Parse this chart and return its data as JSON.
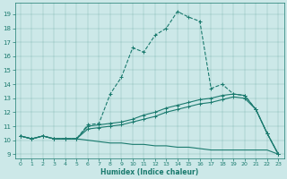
{
  "xlabel": "Humidex (Indice chaleur)",
  "bg_color": "#cce8e8",
  "line_color": "#1a7a6e",
  "xlim": [
    -0.5,
    23.5
  ],
  "ylim": [
    8.7,
    19.8
  ],
  "xticks": [
    0,
    1,
    2,
    3,
    4,
    5,
    6,
    7,
    8,
    9,
    10,
    11,
    12,
    13,
    14,
    15,
    16,
    17,
    18,
    19,
    20,
    21,
    22,
    23
  ],
  "yticks": [
    9,
    10,
    11,
    12,
    13,
    14,
    15,
    16,
    17,
    18,
    19
  ],
  "line1_x": [
    0,
    1,
    2,
    3,
    4,
    5,
    6,
    7,
    8,
    9,
    10,
    11,
    12,
    13,
    14,
    15,
    16,
    17,
    18,
    19,
    20,
    21,
    22,
    23
  ],
  "line1_y": [
    10.3,
    10.1,
    10.3,
    10.1,
    10.1,
    10.1,
    11.1,
    11.2,
    13.3,
    14.5,
    16.6,
    16.3,
    17.5,
    18.0,
    19.2,
    18.8,
    18.5,
    13.7,
    14.0,
    13.3,
    13.2,
    12.2,
    10.5,
    9.0
  ],
  "line2_x": [
    0,
    1,
    2,
    3,
    4,
    5,
    6,
    7,
    8,
    9,
    10,
    11,
    12,
    13,
    14,
    15,
    16,
    17,
    18,
    19,
    20,
    21,
    22,
    23
  ],
  "line2_y": [
    10.3,
    10.1,
    10.3,
    10.1,
    10.1,
    10.1,
    11.0,
    11.1,
    11.2,
    11.3,
    11.5,
    11.8,
    12.0,
    12.3,
    12.5,
    12.7,
    12.9,
    13.0,
    13.2,
    13.3,
    13.2,
    12.2,
    10.5,
    9.0
  ],
  "line3_x": [
    0,
    1,
    2,
    3,
    4,
    5,
    6,
    7,
    8,
    9,
    10,
    11,
    12,
    13,
    14,
    15,
    16,
    17,
    18,
    19,
    20,
    21,
    22,
    23
  ],
  "line3_y": [
    10.3,
    10.1,
    10.3,
    10.1,
    10.1,
    10.1,
    10.8,
    10.9,
    11.0,
    11.1,
    11.3,
    11.5,
    11.7,
    12.0,
    12.2,
    12.4,
    12.6,
    12.7,
    12.9,
    13.1,
    13.0,
    12.2,
    10.5,
    9.0
  ],
  "line4_x": [
    0,
    1,
    2,
    3,
    4,
    5,
    6,
    7,
    8,
    9,
    10,
    11,
    12,
    13,
    14,
    15,
    16,
    17,
    18,
    19,
    20,
    21,
    22,
    23
  ],
  "line4_y": [
    10.3,
    10.1,
    10.3,
    10.1,
    10.1,
    10.1,
    10.0,
    9.9,
    9.8,
    9.8,
    9.7,
    9.7,
    9.6,
    9.6,
    9.5,
    9.5,
    9.4,
    9.3,
    9.3,
    9.3,
    9.3,
    9.3,
    9.3,
    9.0
  ]
}
